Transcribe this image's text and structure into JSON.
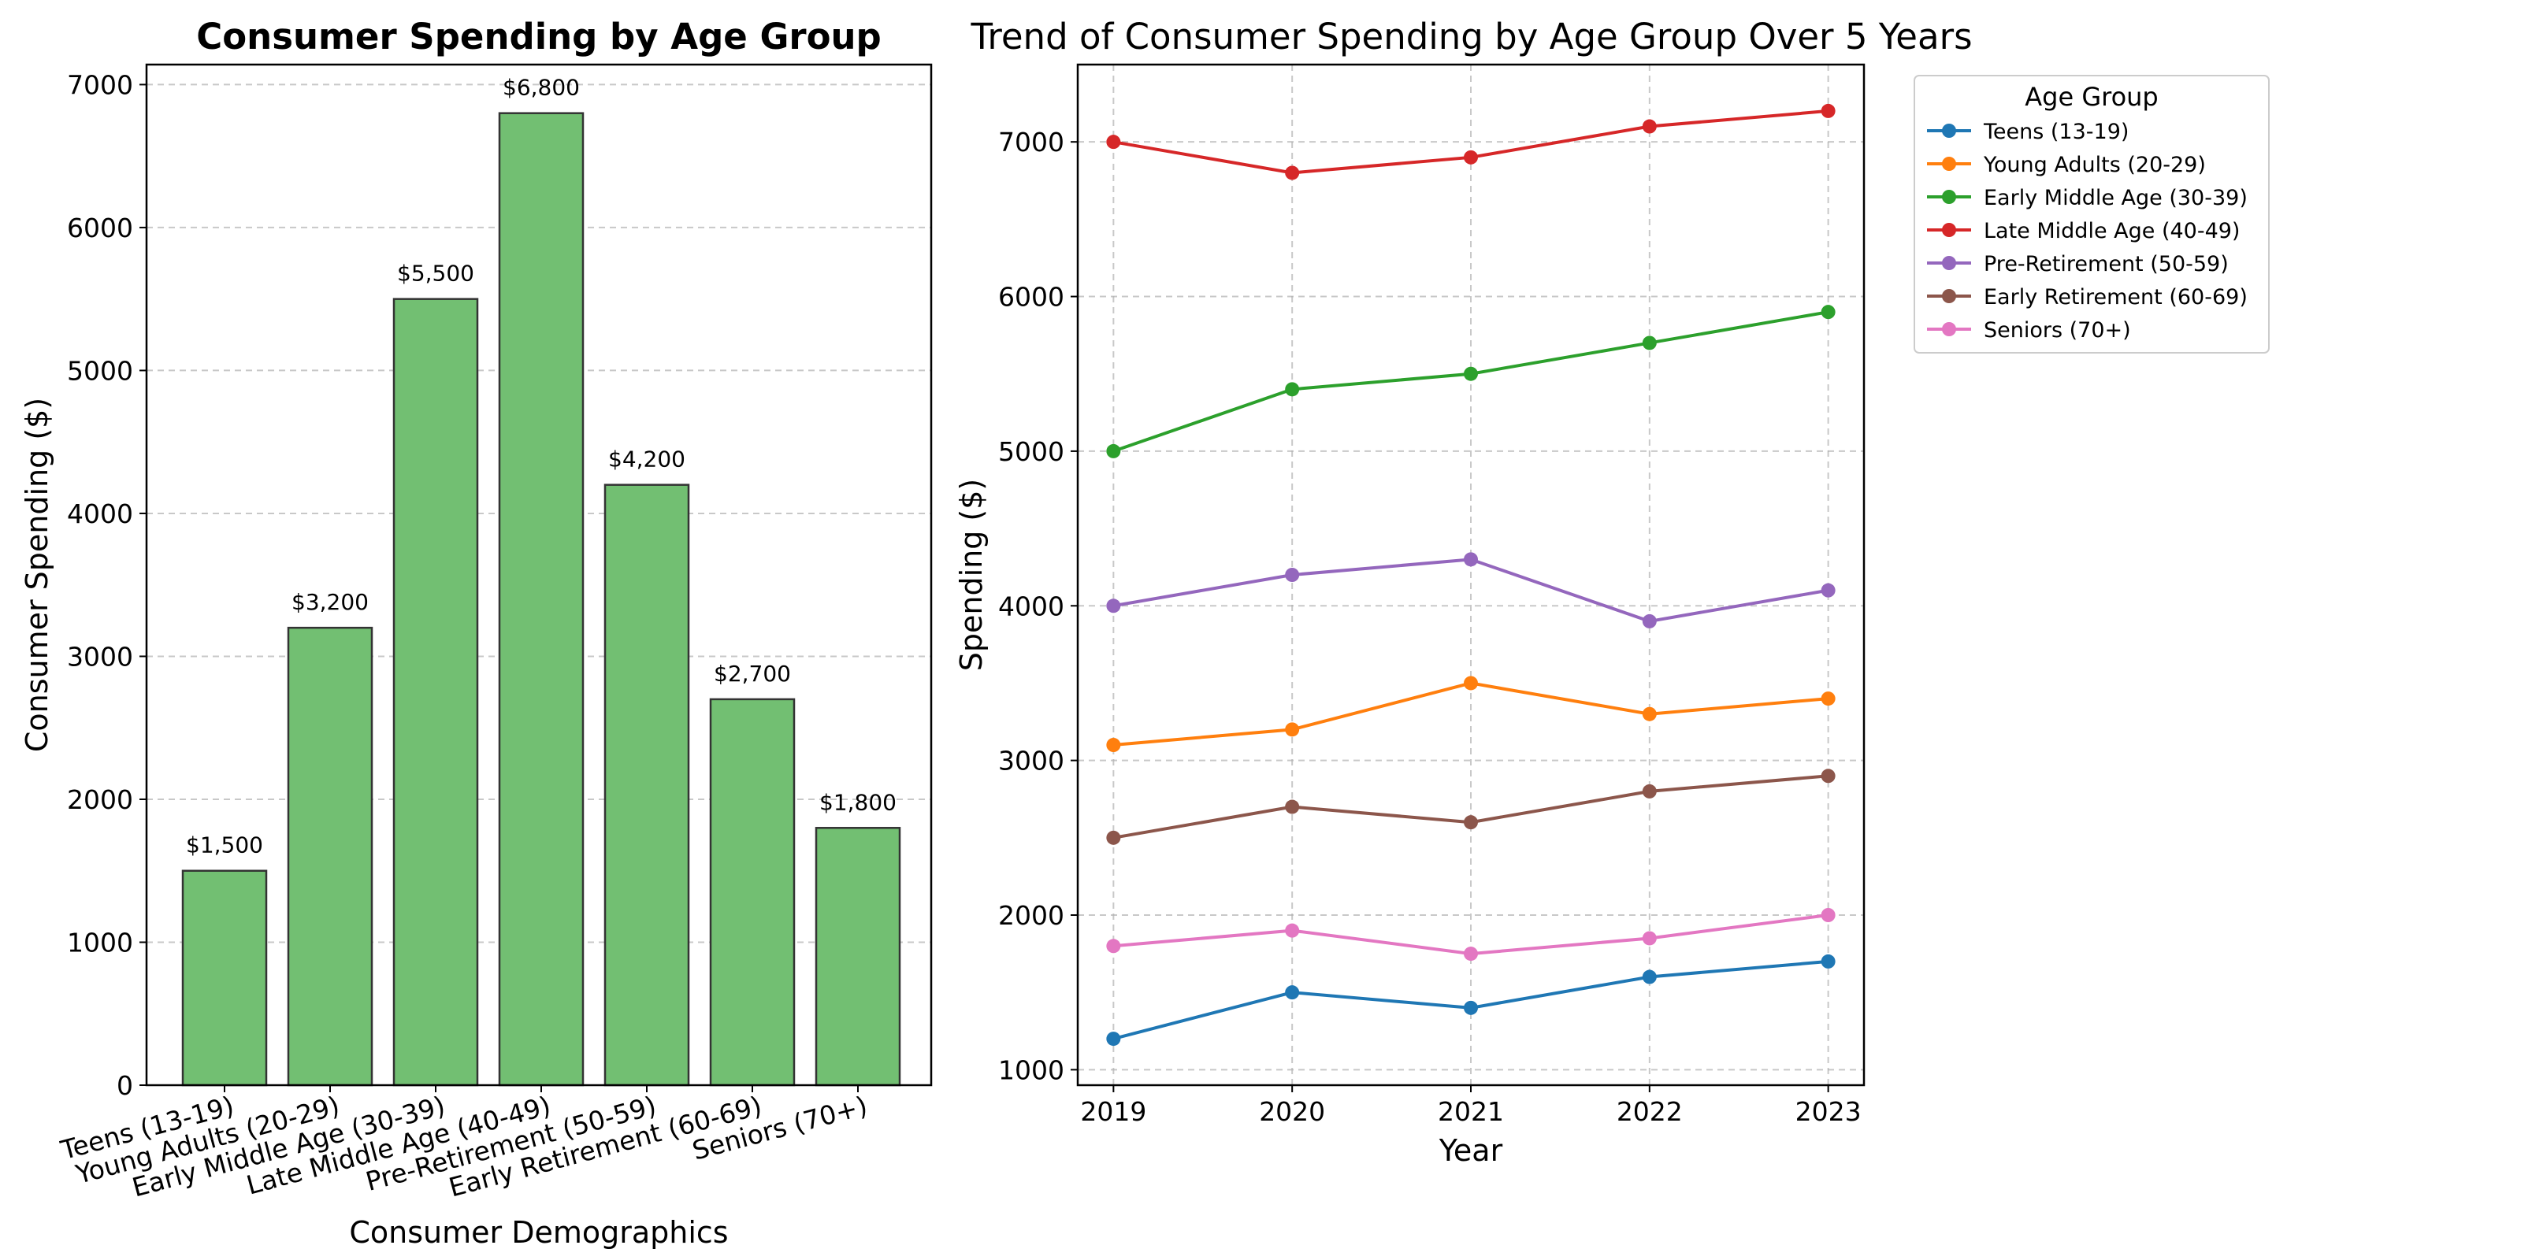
{
  "chart_data": [
    {
      "type": "bar",
      "title": "Consumer Spending by Age Group",
      "xlabel": "Consumer Demographics",
      "ylabel": "Consumer Spending ($)",
      "categories": [
        "Teens (13-19)",
        "Young Adults (20-29)",
        "Early Middle Age (30-39)",
        "Late Middle Age (40-49)",
        "Pre-Retirement (50-59)",
        "Early Retirement (60-69)",
        "Seniors (70+)"
      ],
      "values": [
        1500,
        3200,
        5500,
        6800,
        4200,
        2700,
        1800
      ],
      "value_labels": [
        "$1,500",
        "$3,200",
        "$5,500",
        "$6,800",
        "$4,200",
        "$2,700",
        "$1,800"
      ],
      "ylim": [
        0,
        7140
      ],
      "yticks": [
        0,
        1000,
        2000,
        3000,
        4000,
        5000,
        6000,
        7000
      ],
      "grid": "y",
      "color": "#72bf72",
      "edge_color": "#333333"
    },
    {
      "type": "line",
      "title": "Trend of Consumer Spending by Age Group Over 5 Years",
      "xlabel": "Year",
      "ylabel": "Spending ($)",
      "x": [
        2019,
        2020,
        2021,
        2022,
        2023
      ],
      "ylim": [
        900,
        7500
      ],
      "yticks": [
        1000,
        2000,
        3000,
        4000,
        5000,
        6000,
        7000
      ],
      "grid": "both",
      "legend": {
        "title": "Age Group",
        "placement": "outside-right-top"
      },
      "series": [
        {
          "name": "Teens (13-19)",
          "color": "#1f77b4",
          "values": [
            1200,
            1500,
            1400,
            1600,
            1700
          ]
        },
        {
          "name": "Young Adults (20-29)",
          "color": "#ff7f0e",
          "values": [
            3100,
            3200,
            3500,
            3300,
            3400
          ]
        },
        {
          "name": "Early Middle Age (30-39)",
          "color": "#2ca02c",
          "values": [
            5000,
            5400,
            5500,
            5700,
            5900
          ]
        },
        {
          "name": "Late Middle Age (40-49)",
          "color": "#d62728",
          "values": [
            7000,
            6800,
            6900,
            7100,
            7200
          ]
        },
        {
          "name": "Pre-Retirement (50-59)",
          "color": "#9467bd",
          "values": [
            4000,
            4200,
            4300,
            3900,
            4100
          ]
        },
        {
          "name": "Early Retirement (60-69)",
          "color": "#8c564b",
          "values": [
            2500,
            2700,
            2600,
            2800,
            2900
          ]
        },
        {
          "name": "Seniors (70+)",
          "color": "#e377c2",
          "values": [
            1800,
            1900,
            1750,
            1850,
            2000
          ]
        }
      ]
    }
  ]
}
